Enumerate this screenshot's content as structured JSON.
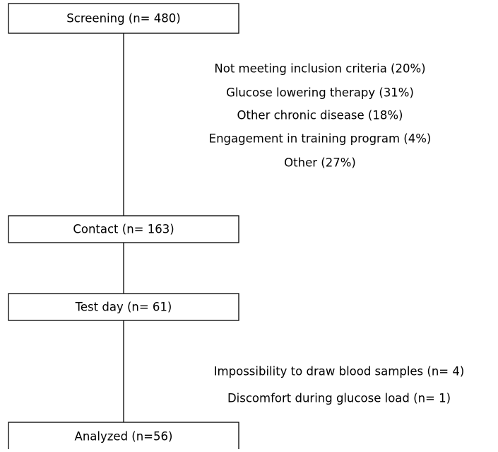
{
  "nodes": [
    {
      "label": "Screening (n= 480)"
    },
    {
      "label": "Contact (n= 163)"
    },
    {
      "label": "Test day (n= 61)"
    },
    {
      "label": "Analyzed (n=56)"
    }
  ],
  "exclusions": [
    {
      "lines": [
        "Not meeting inclusion criteria (20%)",
        "Glucose lowering therapy (31%)",
        "Other chronic disease (18%)",
        "Engagement in training program (4%)",
        "Other (27%)"
      ]
    },
    {
      "lines": [
        "Impossibility to draw blood samples (n= 4)",
        "Discomfort during glucose load (n= 1)"
      ]
    }
  ]
}
